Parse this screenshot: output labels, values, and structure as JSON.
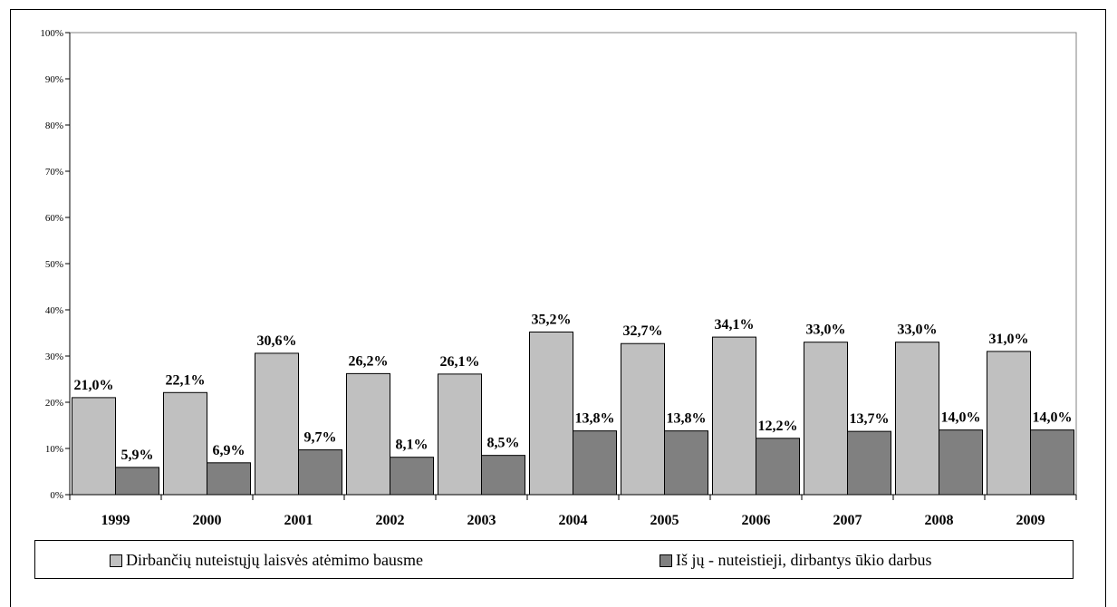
{
  "chart_data": {
    "type": "bar",
    "title": "",
    "xlabel": "",
    "ylabel": "",
    "ylim": [
      0,
      100
    ],
    "y_ticks": [
      "0%",
      "10%",
      "20%",
      "30%",
      "40%",
      "50%",
      "60%",
      "70%",
      "80%",
      "90%",
      "100%"
    ],
    "categories": [
      "1999",
      "2000",
      "2001",
      "2002",
      "2003",
      "2004",
      "2005",
      "2006",
      "2007",
      "2008",
      "2009"
    ],
    "series": [
      {
        "name": "Dirbančių nuteistųjų laisvės atėmimo bausme",
        "color": "#c0c0c0",
        "values": [
          21.0,
          22.1,
          30.6,
          26.2,
          26.1,
          35.2,
          32.7,
          34.1,
          33.0,
          33.0,
          31.0
        ],
        "labels": [
          "21,0%",
          "22,1%",
          "30,6%",
          "26,2%",
          "26,1%",
          "35,2%",
          "32,7%",
          "34,1%",
          "33,0%",
          "33,0%",
          "31,0%"
        ]
      },
      {
        "name": "Iš jų - nuteistieji, dirbantys ūkio darbus",
        "color": "#808080",
        "values": [
          5.9,
          6.9,
          9.7,
          8.1,
          8.5,
          13.8,
          13.8,
          12.2,
          13.7,
          14.0,
          14.0
        ],
        "labels": [
          "5,9%",
          "6,9%",
          "9,7%",
          "8,1%",
          "8,5%",
          "13,8%",
          "13,8%",
          "12,2%",
          "13,7%",
          "14,0%",
          "14,0%"
        ]
      }
    ],
    "grid": false,
    "legend_position": "bottom"
  }
}
